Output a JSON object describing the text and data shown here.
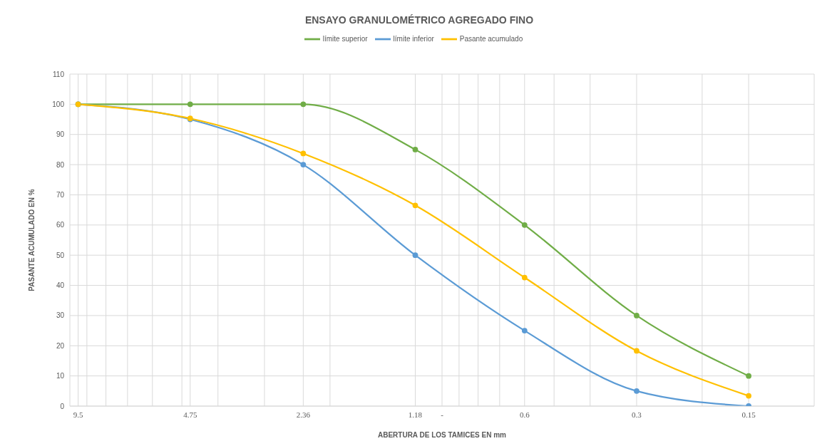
{
  "chart_data": {
    "type": "line",
    "title": "ENSAYO GRANULOMÉTRICO AGREGADO FINO",
    "xlabel": "ABERTURA DE LOS TAMICES EN mm",
    "ylabel": "PASANTE ACUMULADO EN %",
    "x": [
      9.5,
      4.75,
      2.36,
      1.18,
      0.6,
      0.3,
      0.15
    ],
    "series": [
      {
        "name": "límite superior",
        "color": "#70ad47",
        "values": [
          100,
          100,
          100,
          85,
          60,
          30,
          10
        ]
      },
      {
        "name": "límite inferior",
        "color": "#5b9bd5",
        "values": [
          100,
          95,
          80,
          50,
          25,
          5,
          0
        ]
      },
      {
        "name": "Pasante acumulado",
        "color": "#ffc000",
        "values": [
          100,
          95.3,
          83.7,
          66.5,
          42.6,
          18.3,
          3.4
        ]
      }
    ],
    "log": "x",
    "xlim": [
      10,
      0.1
    ],
    "xticks": [
      {
        "value": 10,
        "label": null
      },
      {
        "value": 9.5,
        "label": "9.5"
      },
      {
        "value": 9,
        "label": null
      },
      {
        "value": 8,
        "label": null
      },
      {
        "value": 7,
        "label": null
      },
      {
        "value": 6,
        "label": null
      },
      {
        "value": 5,
        "label": null
      },
      {
        "value": 4.75,
        "label": "4.75"
      },
      {
        "value": 4,
        "label": null
      },
      {
        "value": 3,
        "label": null
      },
      {
        "value": 2.36,
        "label": "2.36"
      },
      {
        "value": 2,
        "label": null
      },
      {
        "value": 1.18,
        "label": "1.18"
      },
      {
        "value": 1,
        "label": "-"
      },
      {
        "value": 0.9,
        "label": null
      },
      {
        "value": 0.8,
        "label": null
      },
      {
        "value": 0.7,
        "label": null
      },
      {
        "value": 0.6,
        "label": "0.6"
      },
      {
        "value": 0.5,
        "label": null
      },
      {
        "value": 0.4,
        "label": null
      },
      {
        "value": 0.3,
        "label": "0.3"
      },
      {
        "value": 0.2,
        "label": null
      },
      {
        "value": 0.15,
        "label": "0.15"
      },
      {
        "value": 0.1,
        "label": null
      }
    ],
    "ylim": [
      0,
      110
    ],
    "yticks": [
      0,
      10,
      20,
      30,
      40,
      50,
      60,
      70,
      80,
      90,
      100,
      110
    ],
    "grid": true,
    "legend": "top",
    "marker": "circle",
    "line_style": "solid"
  }
}
